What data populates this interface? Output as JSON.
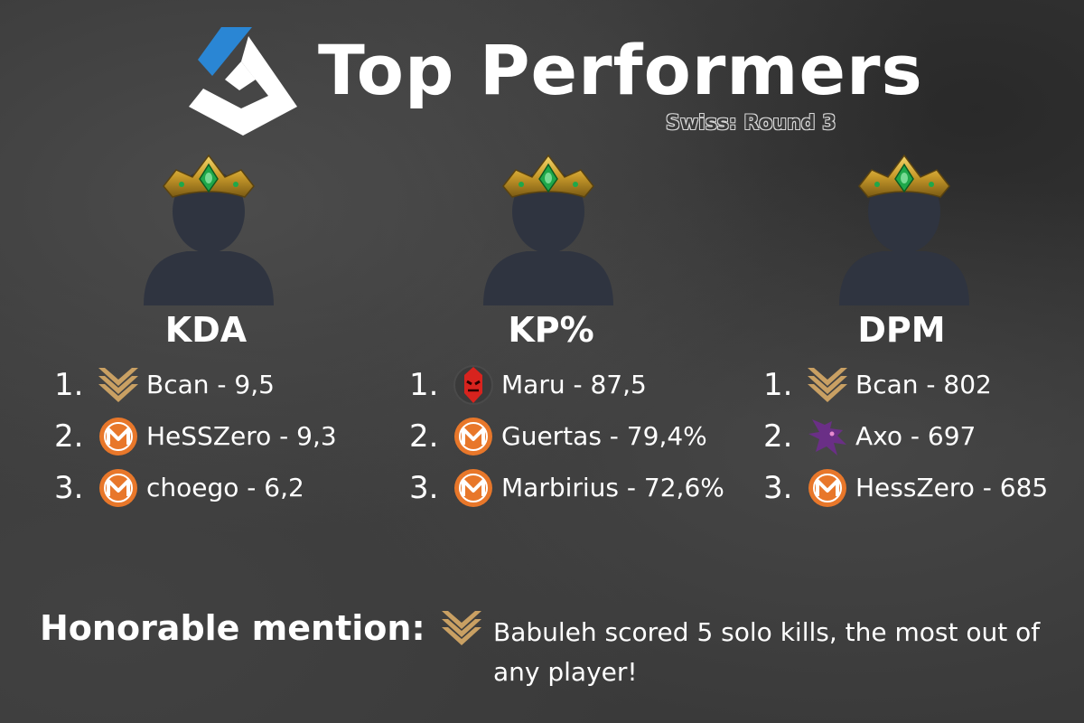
{
  "header": {
    "logo_icon": "league-logo-icon",
    "title": "Top Performers",
    "subtitle": "Swiss: Round 3"
  },
  "colors": {
    "background": "#3a3a3a",
    "logo_blue": "#2a86d4",
    "gold_team": "#c9a063",
    "orange_team": "#e8772a",
    "red_team": "#d8231e",
    "purple_team": "#6a2f86",
    "avatar": "#2f3440"
  },
  "categories": [
    {
      "title": "KDA",
      "avatar_icon": "crowned-player-avatar-icon",
      "entries": [
        {
          "rank": "1.",
          "team_icon": "gold-chevron-team-icon",
          "text": "Bcan - 9,5"
        },
        {
          "rank": "2.",
          "team_icon": "orange-m-team-icon",
          "text": "HeSSZero - 9,3"
        },
        {
          "rank": "3.",
          "team_icon": "orange-m-team-icon",
          "text": "choego - 6,2"
        }
      ]
    },
    {
      "title": "KP%",
      "avatar_icon": "crowned-player-avatar-icon",
      "entries": [
        {
          "rank": "1.",
          "team_icon": "red-mask-team-icon",
          "text": "Maru - 87,5"
        },
        {
          "rank": "2.",
          "team_icon": "orange-m-team-icon",
          "text": "Guertas - 79,4%"
        },
        {
          "rank": "3.",
          "team_icon": "orange-m-team-icon",
          "text": "Marbirius - 72,6%"
        }
      ]
    },
    {
      "title": "DPM",
      "avatar_icon": "crowned-player-avatar-icon",
      "entries": [
        {
          "rank": "1.",
          "team_icon": "gold-chevron-team-icon",
          "text": "Bcan - 802"
        },
        {
          "rank": "2.",
          "team_icon": "purple-dragon-team-icon",
          "text": "Axo - 697"
        },
        {
          "rank": "3.",
          "team_icon": "orange-m-team-icon",
          "text": "HessZero - 685"
        }
      ]
    }
  ],
  "honorable": {
    "title": "Honorable mention:",
    "team_icon": "gold-chevron-team-icon",
    "text": "Babuleh scored 5 solo kills, the most out of any player!"
  }
}
